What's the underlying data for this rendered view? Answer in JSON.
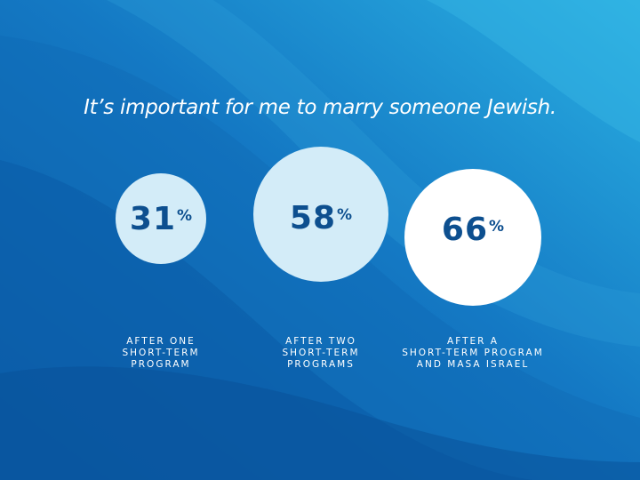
{
  "theme": {
    "bg_dark": "#0a5ea8",
    "bg_mid": "#1880c8",
    "bg_light": "#2aa8dc",
    "circle_light": "#d3ecf8",
    "circle_white": "#ffffff",
    "number_color": "#0d4f8f"
  },
  "chart_data": {
    "type": "bubble",
    "title": "It’s important for me to marry someone Jewish.",
    "unit": "%",
    "categories": [
      "AFTER ONE\nSHORT-TERM\nPROGRAM",
      "AFTER TWO\nSHORT-TERM\nPROGRAMS",
      "AFTER A\nSHORT-TERM PROGRAM\nAND MASA ISRAEL"
    ],
    "values": [
      31,
      58,
      66
    ],
    "value_labels": [
      "31",
      "58",
      "66"
    ]
  }
}
